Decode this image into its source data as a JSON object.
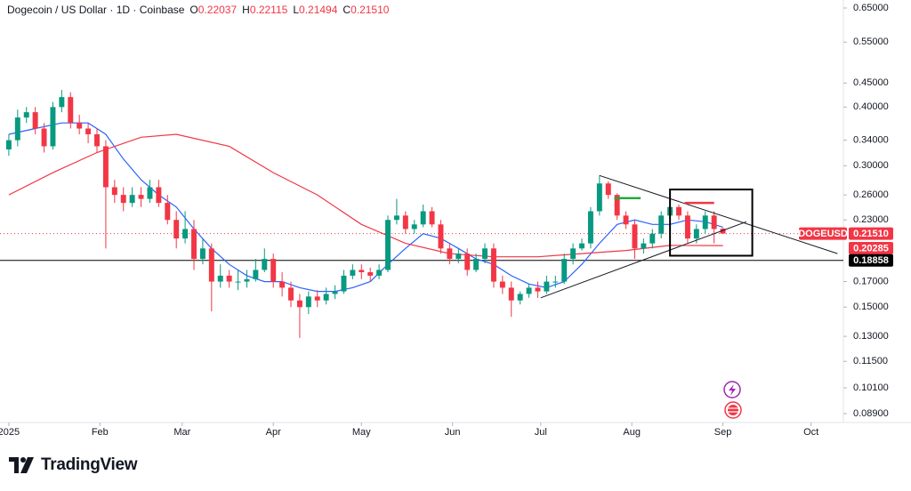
{
  "chart_data": {
    "type": "candlestick",
    "title": "Dogecoin / US Dollar · 1D · Coinbase",
    "header_values": [
      {
        "key": "O",
        "text": "0.22037"
      },
      {
        "key": "H",
        "text": "0.22115"
      },
      {
        "key": "L",
        "text": "0.21494"
      },
      {
        "key": "C",
        "text": "0.21510"
      }
    ],
    "symbol": "DOGEUSD",
    "log_scale": true,
    "grid": false,
    "up_color": "#089981",
    "down_color": "#f23645",
    "x": [
      0,
      3,
      6,
      9,
      12,
      15,
      18,
      21,
      24,
      27,
      30,
      33,
      36,
      39,
      42,
      45,
      48,
      51,
      54,
      57,
      60,
      63,
      66,
      69,
      72,
      75,
      78,
      81,
      84,
      87,
      90,
      93,
      96,
      99,
      102,
      105,
      108,
      111,
      114,
      117,
      120,
      123,
      126,
      129,
      132,
      135,
      138,
      141,
      144,
      147,
      150,
      153,
      156,
      159,
      162,
      165,
      168,
      171,
      174,
      177,
      180,
      183,
      186,
      189,
      192,
      195,
      198,
      201,
      204,
      207,
      210,
      213,
      216,
      219,
      222,
      225,
      228,
      231,
      234,
      237,
      240,
      243
    ],
    "open": [
      0.325,
      0.34,
      0.38,
      0.39,
      0.36,
      0.33,
      0.4,
      0.42,
      0.37,
      0.36,
      0.35,
      0.33,
      0.27,
      0.26,
      0.25,
      0.26,
      0.255,
      0.27,
      0.25,
      0.23,
      0.21,
      0.22,
      0.19,
      0.2,
      0.17,
      0.175,
      0.17,
      0.17,
      0.172,
      0.18,
      0.19,
      0.17,
      0.165,
      0.155,
      0.15,
      0.158,
      0.155,
      0.16,
      0.162,
      0.175,
      0.18,
      0.178,
      0.175,
      0.18,
      0.23,
      0.235,
      0.22,
      0.225,
      0.24,
      0.225,
      0.2,
      0.19,
      0.195,
      0.18,
      0.19,
      0.2,
      0.17,
      0.165,
      0.155,
      0.16,
      0.165,
      0.162,
      0.17,
      0.17,
      0.19,
      0.2,
      0.205,
      0.24,
      0.275,
      0.26,
      0.235,
      0.225,
      0.2,
      0.205,
      0.215,
      0.235,
      0.245,
      0.235,
      0.21,
      0.22,
      0.235,
      0.22037
    ],
    "high": [
      0.35,
      0.395,
      0.4,
      0.4,
      0.37,
      0.41,
      0.435,
      0.43,
      0.385,
      0.37,
      0.36,
      0.34,
      0.28,
      0.27,
      0.27,
      0.27,
      0.28,
      0.28,
      0.26,
      0.24,
      0.24,
      0.23,
      0.21,
      0.205,
      0.185,
      0.18,
      0.18,
      0.18,
      0.19,
      0.2,
      0.195,
      0.178,
      0.17,
      0.16,
      0.162,
      0.163,
      0.165,
      0.167,
      0.18,
      0.185,
      0.185,
      0.182,
      0.185,
      0.235,
      0.255,
      0.24,
      0.23,
      0.248,
      0.245,
      0.23,
      0.205,
      0.2,
      0.2,
      0.195,
      0.205,
      0.205,
      0.175,
      0.17,
      0.162,
      0.168,
      0.17,
      0.175,
      0.175,
      0.195,
      0.205,
      0.21,
      0.245,
      0.286,
      0.278,
      0.262,
      0.24,
      0.23,
      0.21,
      0.22,
      0.24,
      0.25,
      0.248,
      0.24,
      0.225,
      0.24,
      0.24,
      0.22115
    ],
    "low": [
      0.315,
      0.33,
      0.37,
      0.35,
      0.32,
      0.325,
      0.39,
      0.36,
      0.35,
      0.335,
      0.32,
      0.2,
      0.25,
      0.24,
      0.245,
      0.245,
      0.25,
      0.245,
      0.225,
      0.2,
      0.205,
      0.18,
      0.185,
      0.147,
      0.165,
      0.165,
      0.163,
      0.165,
      0.17,
      0.178,
      0.165,
      0.158,
      0.15,
      0.129,
      0.145,
      0.15,
      0.152,
      0.156,
      0.16,
      0.172,
      0.172,
      0.17,
      0.172,
      0.178,
      0.225,
      0.215,
      0.215,
      0.222,
      0.222,
      0.195,
      0.185,
      0.186,
      0.175,
      0.178,
      0.186,
      0.165,
      0.16,
      0.143,
      0.152,
      0.157,
      0.157,
      0.16,
      0.165,
      0.168,
      0.185,
      0.198,
      0.2,
      0.235,
      0.255,
      0.23,
      0.22,
      0.19,
      0.195,
      0.2,
      0.21,
      0.232,
      0.23,
      0.205,
      0.205,
      0.215,
      0.205,
      0.21494
    ],
    "close": [
      0.34,
      0.38,
      0.39,
      0.36,
      0.33,
      0.4,
      0.42,
      0.37,
      0.36,
      0.35,
      0.33,
      0.27,
      0.26,
      0.25,
      0.26,
      0.255,
      0.27,
      0.25,
      0.23,
      0.21,
      0.22,
      0.19,
      0.2,
      0.17,
      0.175,
      0.17,
      0.17,
      0.172,
      0.18,
      0.19,
      0.17,
      0.165,
      0.155,
      0.15,
      0.158,
      0.155,
      0.16,
      0.162,
      0.175,
      0.18,
      0.178,
      0.175,
      0.18,
      0.23,
      0.235,
      0.22,
      0.225,
      0.24,
      0.225,
      0.2,
      0.19,
      0.195,
      0.18,
      0.19,
      0.2,
      0.17,
      0.165,
      0.155,
      0.16,
      0.165,
      0.162,
      0.17,
      0.17,
      0.19,
      0.2,
      0.205,
      0.24,
      0.275,
      0.26,
      0.235,
      0.225,
      0.2,
      0.205,
      0.215,
      0.235,
      0.245,
      0.235,
      0.21,
      0.22,
      0.235,
      0.22,
      0.2151
    ],
    "xlim": [
      -3,
      284
    ],
    "xticks": [
      {
        "value": 0,
        "label": "2025"
      },
      {
        "value": 31,
        "label": "Feb"
      },
      {
        "value": 59,
        "label": "Mar"
      },
      {
        "value": 90,
        "label": "Apr"
      },
      {
        "value": 120,
        "label": "May"
      },
      {
        "value": 151,
        "label": "Jun"
      },
      {
        "value": 181,
        "label": "Jul"
      },
      {
        "value": 212,
        "label": "Aug"
      },
      {
        "value": 243,
        "label": "Sep"
      },
      {
        "value": 273,
        "label": "Oct"
      }
    ],
    "ylim": [
      0.0852,
      0.676
    ],
    "yticks": [
      {
        "value": 0.65,
        "label": "0.65000"
      },
      {
        "value": 0.55,
        "label": "0.55000"
      },
      {
        "value": 0.45,
        "label": "0.45000"
      },
      {
        "value": 0.4,
        "label": "0.40000"
      },
      {
        "value": 0.34,
        "label": "0.34000"
      },
      {
        "value": 0.3,
        "label": "0.30000"
      },
      {
        "value": 0.26,
        "label": "0.26000"
      },
      {
        "value": 0.23,
        "label": "0.23000"
      },
      {
        "value": 0.17,
        "label": "0.17000"
      },
      {
        "value": 0.15,
        "label": "0.15000"
      },
      {
        "value": 0.13,
        "label": "0.13000"
      },
      {
        "value": 0.115,
        "label": "0.11500"
      },
      {
        "value": 0.101,
        "label": "0.10100"
      },
      {
        "value": 0.089,
        "label": "0.08900"
      }
    ],
    "overlays": [
      {
        "color": "#2962ff",
        "x": [
          0,
          9,
          18,
          27,
          33,
          39,
          45,
          51,
          57,
          63,
          69,
          75,
          81,
          87,
          93,
          99,
          105,
          111,
          117,
          123,
          129,
          135,
          141,
          147,
          153,
          159,
          165,
          171,
          177,
          183,
          189,
          195,
          201,
          207,
          213,
          219,
          225,
          231,
          237,
          243
        ],
        "values": [
          0.35,
          0.36,
          0.37,
          0.37,
          0.35,
          0.31,
          0.28,
          0.26,
          0.245,
          0.22,
          0.2,
          0.185,
          0.175,
          0.17,
          0.17,
          0.165,
          0.162,
          0.162,
          0.165,
          0.17,
          0.185,
          0.2,
          0.215,
          0.21,
          0.2,
          0.19,
          0.185,
          0.175,
          0.168,
          0.165,
          0.17,
          0.185,
          0.205,
          0.225,
          0.23,
          0.225,
          0.225,
          0.23,
          0.228,
          0.222
        ]
      },
      {
        "color": "#f23645",
        "x": [
          0,
          15,
          30,
          45,
          57,
          75,
          90,
          105,
          120,
          135,
          150,
          165,
          180,
          195,
          210,
          225,
          243
        ],
        "values": [
          0.26,
          0.29,
          0.32,
          0.345,
          0.35,
          0.33,
          0.29,
          0.26,
          0.225,
          0.205,
          0.195,
          0.192,
          0.192,
          0.195,
          0.198,
          0.203,
          0.20285
        ]
      }
    ],
    "price_line": {
      "value": 0.2151,
      "label": "0.21510",
      "color": "#f23645"
    },
    "hlines": [
      {
        "value": 0.18858,
        "color": "#000000"
      }
    ],
    "trendlines": [
      {
        "x": [
          201,
          282
        ],
        "y": [
          0.286,
          0.195
        ],
        "color": "#131722"
      },
      {
        "x": [
          181,
          251
        ],
        "y": [
          0.157,
          0.228
        ],
        "color": "#131722"
      }
    ],
    "segments": [
      {
        "x": [
          206,
          215
        ],
        "y": [
          0.256,
          0.256
        ],
        "color": "#22ab3c"
      },
      {
        "x": [
          230,
          240
        ],
        "y": [
          0.25,
          0.25
        ],
        "color": "#f23645"
      }
    ],
    "box": {
      "x": [
        225,
        253
      ],
      "y": [
        0.193,
        0.267
      ],
      "color": "#000000"
    }
  },
  "footer": {
    "brand": "TradingView"
  }
}
